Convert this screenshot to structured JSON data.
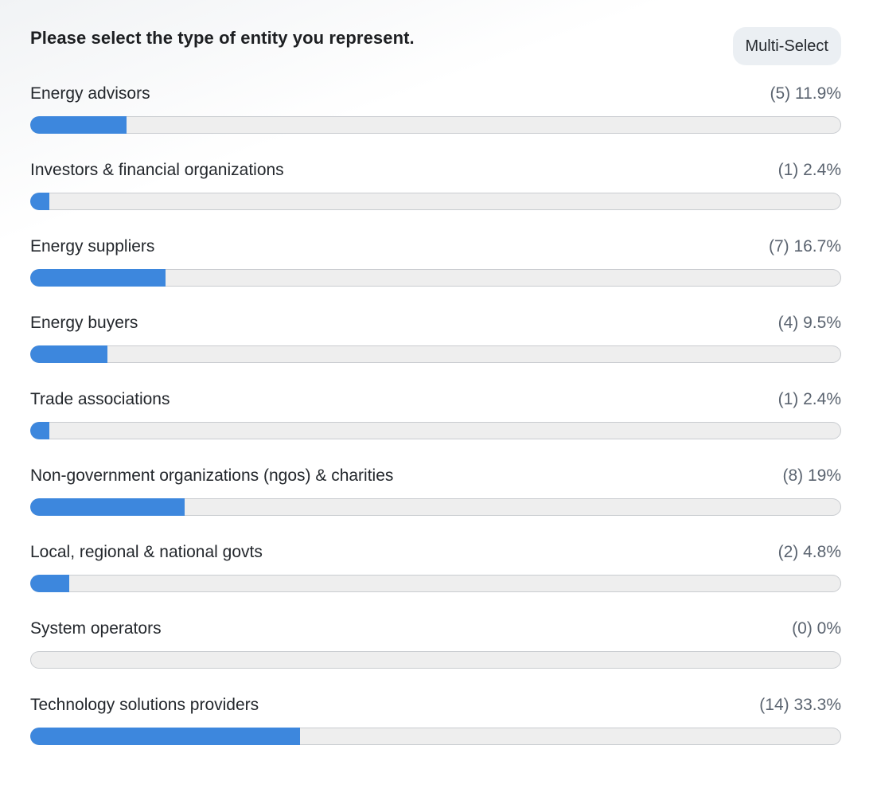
{
  "question": {
    "title": "Please select the type of entity you represent.",
    "badge": "Multi-Select"
  },
  "colors": {
    "bar_fill": "#3d87dd",
    "bar_track": "#eeeeee"
  },
  "chart_data": {
    "type": "bar",
    "orientation": "horizontal",
    "max_percent": 100,
    "options": [
      {
        "label": "Energy advisors",
        "count": 5,
        "percent": 11.9,
        "stat": "(5) 11.9%"
      },
      {
        "label": "Investors & financial organizations",
        "count": 1,
        "percent": 2.4,
        "stat": "(1) 2.4%"
      },
      {
        "label": "Energy suppliers",
        "count": 7,
        "percent": 16.7,
        "stat": "(7) 16.7%"
      },
      {
        "label": "Energy buyers",
        "count": 4,
        "percent": 9.5,
        "stat": "(4) 9.5%"
      },
      {
        "label": "Trade associations",
        "count": 1,
        "percent": 2.4,
        "stat": "(1) 2.4%"
      },
      {
        "label": "Non-government organizations (ngos) & charities",
        "count": 8,
        "percent": 19,
        "stat": "(8) 19%"
      },
      {
        "label": "Local, regional & national govts",
        "count": 2,
        "percent": 4.8,
        "stat": "(2) 4.8%"
      },
      {
        "label": "System operators",
        "count": 0,
        "percent": 0,
        "stat": "(0) 0%"
      },
      {
        "label": "Technology solutions providers",
        "count": 14,
        "percent": 33.3,
        "stat": "(14) 33.3%"
      }
    ]
  }
}
